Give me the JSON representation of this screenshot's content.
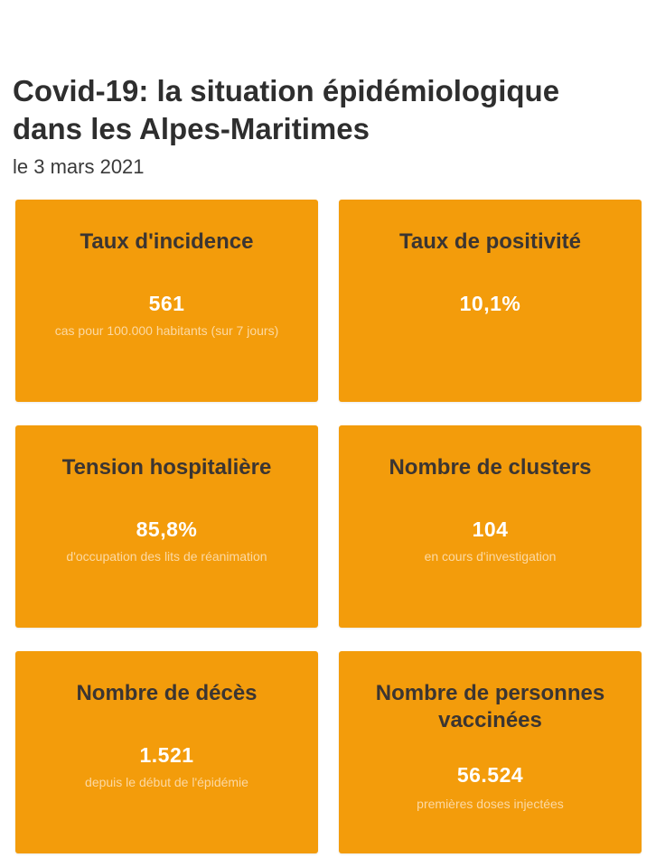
{
  "header": {
    "title": "Covid-19: la situation épidémiologique dans les Alpes-Maritimes",
    "date": "le 3 mars 2021"
  },
  "cards": [
    {
      "title": "Taux d'incidence",
      "value": "561",
      "subtitle": "cas pour 100.000 habitants (sur 7 jours)"
    },
    {
      "title": "Taux de positivité",
      "value": "10,1%",
      "subtitle": ""
    },
    {
      "title": "Tension hospitalière",
      "value": "85,8%",
      "subtitle": "d'occupation des lits de réanimation"
    },
    {
      "title": "Nombre de clusters",
      "value": "104",
      "subtitle": "en cours d'investigation"
    },
    {
      "title": "Nombre de décès",
      "value": "1.521",
      "subtitle": "depuis le début de l'épidémie"
    },
    {
      "title": "Nombre de personnes vaccinées",
      "value": "56.524",
      "subtitle": "premières doses injectées"
    }
  ],
  "colors": {
    "card_background": "#f39c0b",
    "card_title": "#3b3532",
    "card_value": "#ffffff",
    "card_subtitle": "#fcd9a3"
  }
}
